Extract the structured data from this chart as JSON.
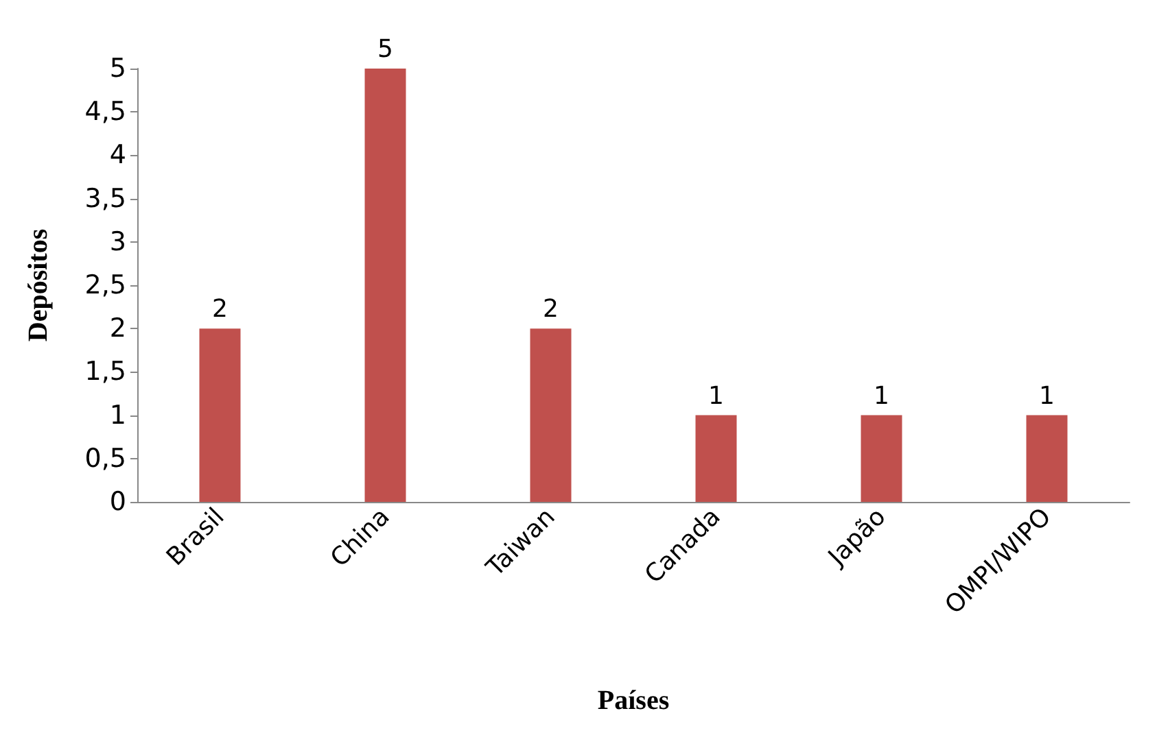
{
  "chart_data": {
    "type": "bar",
    "xlabel": "Países",
    "ylabel": "Depósitos",
    "categories": [
      "Brasil",
      "China",
      "Taiwan",
      "Canada",
      "Japão",
      "OMPI/WIPO"
    ],
    "values": [
      2,
      5,
      2,
      1,
      1,
      1
    ],
    "color": "#c0504d",
    "ylim": [
      0,
      5
    ],
    "yticks": [
      0,
      {
        "value": 0.5,
        "label": "0,5"
      },
      1,
      {
        "value": 1.5,
        "label": "1,5"
      },
      2,
      {
        "value": 2.5,
        "label": "2,5"
      },
      3,
      {
        "value": 3.5,
        "label": "3,5"
      },
      4,
      {
        "value": 4.5,
        "label": "4,5"
      },
      5
    ],
    "data_labels": true,
    "grid": false
  }
}
